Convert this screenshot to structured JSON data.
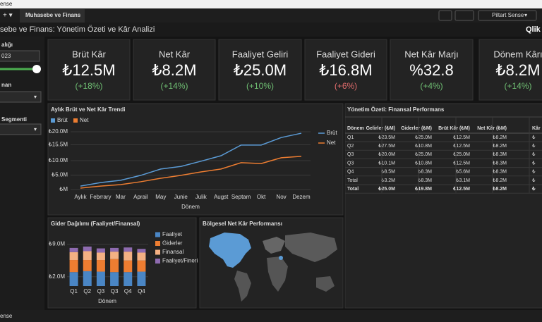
{
  "top_bar": {
    "app_name": "ense",
    "tab": "Muhasebe ve Finans",
    "user": "Piltart Sense"
  },
  "header": {
    "title": "sebe ve Finans: Yönetim Özeti ve Kâr Analizi",
    "logo": "Qlik"
  },
  "sidebar": {
    "filters": [
      {
        "label": "alığı",
        "value": "023"
      },
      {
        "label": "nan"
      },
      {
        "label": "Segmenti"
      }
    ]
  },
  "kpis": [
    {
      "title": "Brüt Kâr",
      "value": "₺12.5M",
      "change": "(+18%)",
      "change_color": "#6fbf73"
    },
    {
      "title": "Net Kâr",
      "value": "₺8.2M",
      "change": "(+14%)",
      "change_color": "#6fbf73"
    },
    {
      "title": "Faaliyet Geliri",
      "value": "₺25.0M",
      "change": "(+10%)",
      "change_color": "#6fbf73"
    },
    {
      "title": "Faaliyet Gideri",
      "value": "₺16.8M",
      "change": "(+6%)",
      "change_color": "#e06c6c"
    },
    {
      "title": "Net Kâr Marjı",
      "value": "%32.8",
      "change": "(+4%)",
      "change_color": "#6fbf73"
    },
    {
      "title": "Dönem Kârı",
      "value": "₺8.2M",
      "change": "(+14%)",
      "change_color": "#6fbf73"
    }
  ],
  "table": {
    "title": "Yönetim Özeti: Finansal Performans",
    "columns": [
      "Dönem",
      "Gelirler (₺M)",
      "Giderler (₺M)",
      "Brüt Kâr (₺M)",
      "Net Kâr (₺M)",
      "Kâr Ma"
    ],
    "rows": [
      [
        "Q1",
        "₺23.5M",
        "₺25.0M",
        "₺12.5M",
        "₺8.2M",
        "₺"
      ],
      [
        "Q2",
        "₺27.5M",
        "₺10.8M",
        "₺12.5M",
        "₺8.2M",
        "₺"
      ],
      [
        "Q3",
        "₺20.0M",
        "₺25.0M",
        "₺25.0M",
        "₺8.3M",
        "₺"
      ],
      [
        "Q3",
        "₺10.1M",
        "₺10.8M",
        "₺12.5M",
        "₺8.3M",
        "₺"
      ],
      [
        "Q4",
        "₺8.5M",
        "₺8.3M",
        "₺5.6M",
        "₺8.3M",
        "₺"
      ],
      [
        "Total",
        "₺3.2M",
        "₺8.3M",
        "₺3.1M",
        "₺8.2M",
        "₺"
      ],
      [
        "Total",
        "₺25.0M",
        "₺19.8M",
        "₺12.5M",
        "₺8.2M",
        "₺"
      ]
    ]
  },
  "map": {
    "title": "Bölgesel Net Kâr Performansı"
  },
  "footer": {
    "text": "ense"
  },
  "chart_data": [
    {
      "type": "line",
      "title": "Aylık Brüt ve Net Kâr Trendi",
      "x_label": "Dönem",
      "categories": [
        "Aylık",
        "Febrrary",
        "Mar",
        "Aprail",
        "May",
        "Junie",
        "Julik",
        "Augst",
        "Septam",
        "Okt",
        "Nov",
        "Dezem"
      ],
      "series": [
        {
          "name": "Brüt",
          "color": "#5b9bd5",
          "values": [
            1.2,
            2.4,
            3.2,
            4.9,
            7.1,
            8.0,
            9.8,
            11.7,
            15.4,
            15.4,
            18.0,
            19.5
          ]
        },
        {
          "name": "Net",
          "color": "#ed7d31",
          "values": [
            0.5,
            1.2,
            1.7,
            2.7,
            3.9,
            4.9,
            6.1,
            7.1,
            9.3,
            9.0,
            11.0,
            11.5
          ]
        }
      ],
      "ylim": [
        0,
        20
      ],
      "yticks": [
        {
          "value": 20,
          "label": "₺20.0M"
        },
        {
          "value": 15.5,
          "label": "₺15.5M"
        },
        {
          "value": 10,
          "label": "₺10.0M"
        },
        {
          "value": 5,
          "label": "₺5.0M"
        },
        {
          "value": 0,
          "label": "₺M"
        }
      ],
      "grid": true,
      "legend": "top-left"
    },
    {
      "type": "stacked_bar",
      "title": "Gider Dağılımı (Faaliyet/Finansal)",
      "x_label": "Dönem",
      "categories": [
        "Q1",
        "Q2",
        "Q3",
        "Q3",
        "Q4",
        "Q4"
      ],
      "series": [
        {
          "name": "Faaliyet",
          "color": "#4a86c5",
          "values": [
            3.0,
            3.2,
            3.1,
            3.0,
            3.0,
            3.1
          ]
        },
        {
          "name": "Giderler",
          "color": "#ed7d31",
          "values": [
            2.6,
            2.4,
            2.5,
            2.8,
            2.5,
            2.4
          ]
        },
        {
          "name": "Finansal",
          "color": "#f4b183",
          "values": [
            1.7,
            1.9,
            1.6,
            1.6,
            1.9,
            1.7
          ]
        },
        {
          "name": "Faaliyet/Fineri",
          "color": "#8e6bb0",
          "values": [
            0.9,
            1.0,
            0.9,
            0.8,
            0.9,
            0.8
          ]
        }
      ],
      "ylim": [
        0,
        10
      ],
      "yticks": [
        {
          "value": 9,
          "label": "₺9.0M"
        },
        {
          "value": 2,
          "label": "₺2.0M"
        }
      ],
      "grid": true,
      "legend": "right"
    }
  ]
}
